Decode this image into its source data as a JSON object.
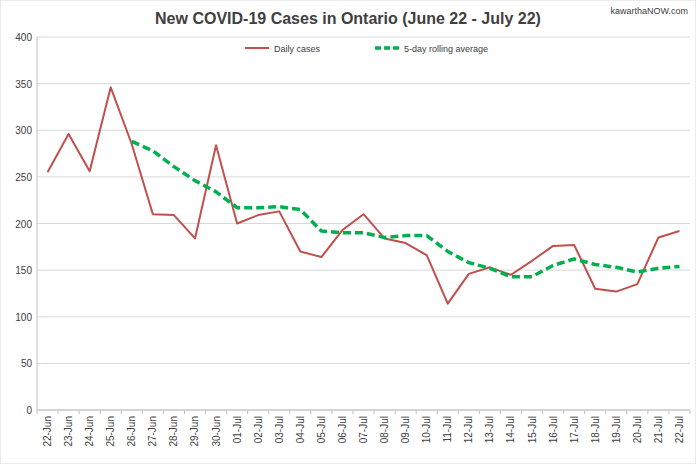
{
  "chart_data": {
    "type": "line",
    "title": "New COVID-19 Cases in Ontario (June 22 - July 22)",
    "annotations": [
      "kawarthaNOW.com"
    ],
    "categories": [
      "22-Jun",
      "23-Jun",
      "24-Jun",
      "25-Jun",
      "26-Jun",
      "27-Jun",
      "28-Jun",
      "29-Jun",
      "30-Jun",
      "01-Jul",
      "02-Jul",
      "03-Jul",
      "04-Jul",
      "05-Jul",
      "06-Jul",
      "07-Jul",
      "08-Jul",
      "09-Jul",
      "10-Jul",
      "11-Jul",
      "12-Jul",
      "13-Jul",
      "14-Jul",
      "15-Jul",
      "16-Jul",
      "17-Jul",
      "18-Jul",
      "19-Jul",
      "20-Jul",
      "21-Jul",
      "22-Jul"
    ],
    "series": [
      {
        "name": "Daily cases",
        "color": "#c0504d",
        "line_style": "solid",
        "values": [
          255,
          296,
          256,
          346,
          285,
          210,
          209,
          184,
          284,
          200,
          209,
          213,
          170,
          164,
          193,
          210,
          184,
          179,
          166,
          114,
          146,
          153,
          145,
          160,
          176,
          177,
          130,
          127,
          135,
          185,
          192
        ]
      },
      {
        "name": "5-day rolling average",
        "color": "#00b050",
        "line_style": "dashed",
        "values": [
          null,
          null,
          null,
          null,
          288,
          278,
          261,
          246,
          234,
          217,
          217,
          218,
          215,
          192,
          190,
          190,
          185,
          187,
          187,
          170,
          158,
          152,
          143,
          143,
          155,
          162,
          156,
          153,
          148,
          152,
          154
        ]
      }
    ],
    "ylim": [
      0,
      400
    ],
    "yticks": [
      0,
      50,
      100,
      150,
      200,
      250,
      300,
      350,
      400
    ],
    "grid": true,
    "legend": "top"
  }
}
